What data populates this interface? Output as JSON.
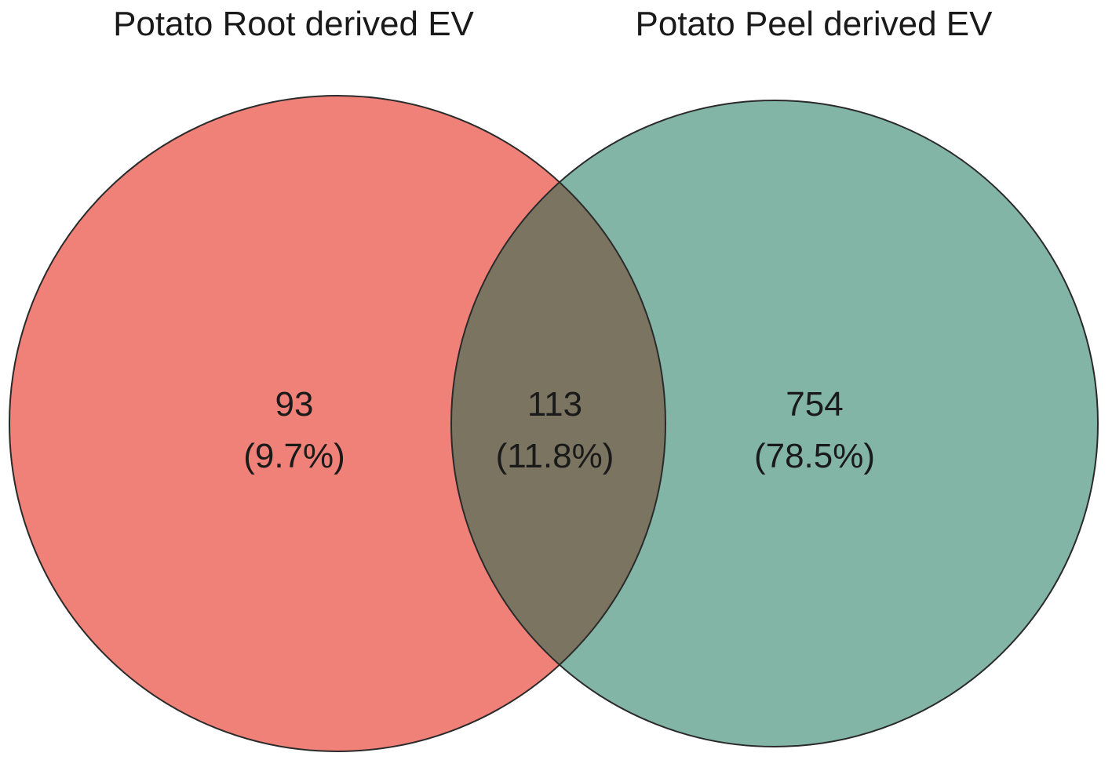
{
  "sets": [
    {
      "id": "root",
      "title": "Potato Root derived EV",
      "color": "#f08178"
    },
    {
      "id": "peel",
      "title": "Potato Peel derived EV",
      "color": "#82b5a6"
    }
  ],
  "overlap_color": "#7b7461",
  "outline_color": "#2a2a2a",
  "regions": [
    {
      "id": "root-only",
      "count": "93",
      "percent": "(9.7%)"
    },
    {
      "id": "both",
      "count": "113",
      "percent": "(11.8%)"
    },
    {
      "id": "peel-only",
      "count": "754",
      "percent": "(78.5%)"
    }
  ]
}
